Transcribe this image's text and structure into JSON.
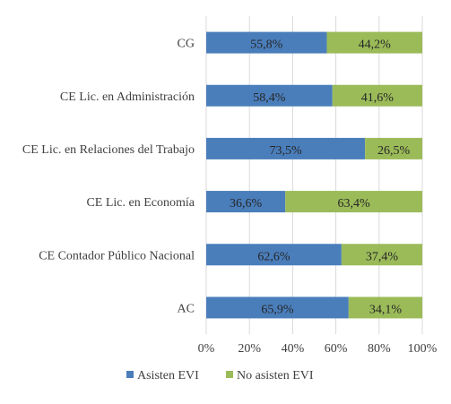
{
  "chart_data": {
    "type": "bar",
    "orientation": "horizontal",
    "stacked": "100%",
    "categories": [
      "CG",
      "CE Lic. en Administración",
      "CE  Lic. en Relaciones del Trabajo",
      "CE Lic. en Economía",
      "CE  Contador Público Nacional",
      "AC"
    ],
    "series": [
      {
        "name": "Asisten EVI",
        "color": "#4a7ebb",
        "values": [
          55.8,
          58.4,
          73.5,
          36.6,
          62.6,
          65.9
        ],
        "labels": [
          "55,8%",
          "58,4%",
          "73,5%",
          "36,6%",
          "62,6%",
          "65,9%"
        ]
      },
      {
        "name": "No asisten EVI",
        "color": "#9bbb59",
        "values": [
          44.2,
          41.6,
          26.5,
          63.4,
          37.4,
          34.1
        ],
        "labels": [
          "44,2%",
          "41,6%",
          "26,5%",
          "63,4%",
          "37,4%",
          "34,1%"
        ]
      }
    ],
    "xlim": [
      0,
      100
    ],
    "x_ticks": [
      "0%",
      "20%",
      "40%",
      "60%",
      "80%",
      "100%"
    ],
    "grid": true,
    "legend_position": "bottom"
  }
}
